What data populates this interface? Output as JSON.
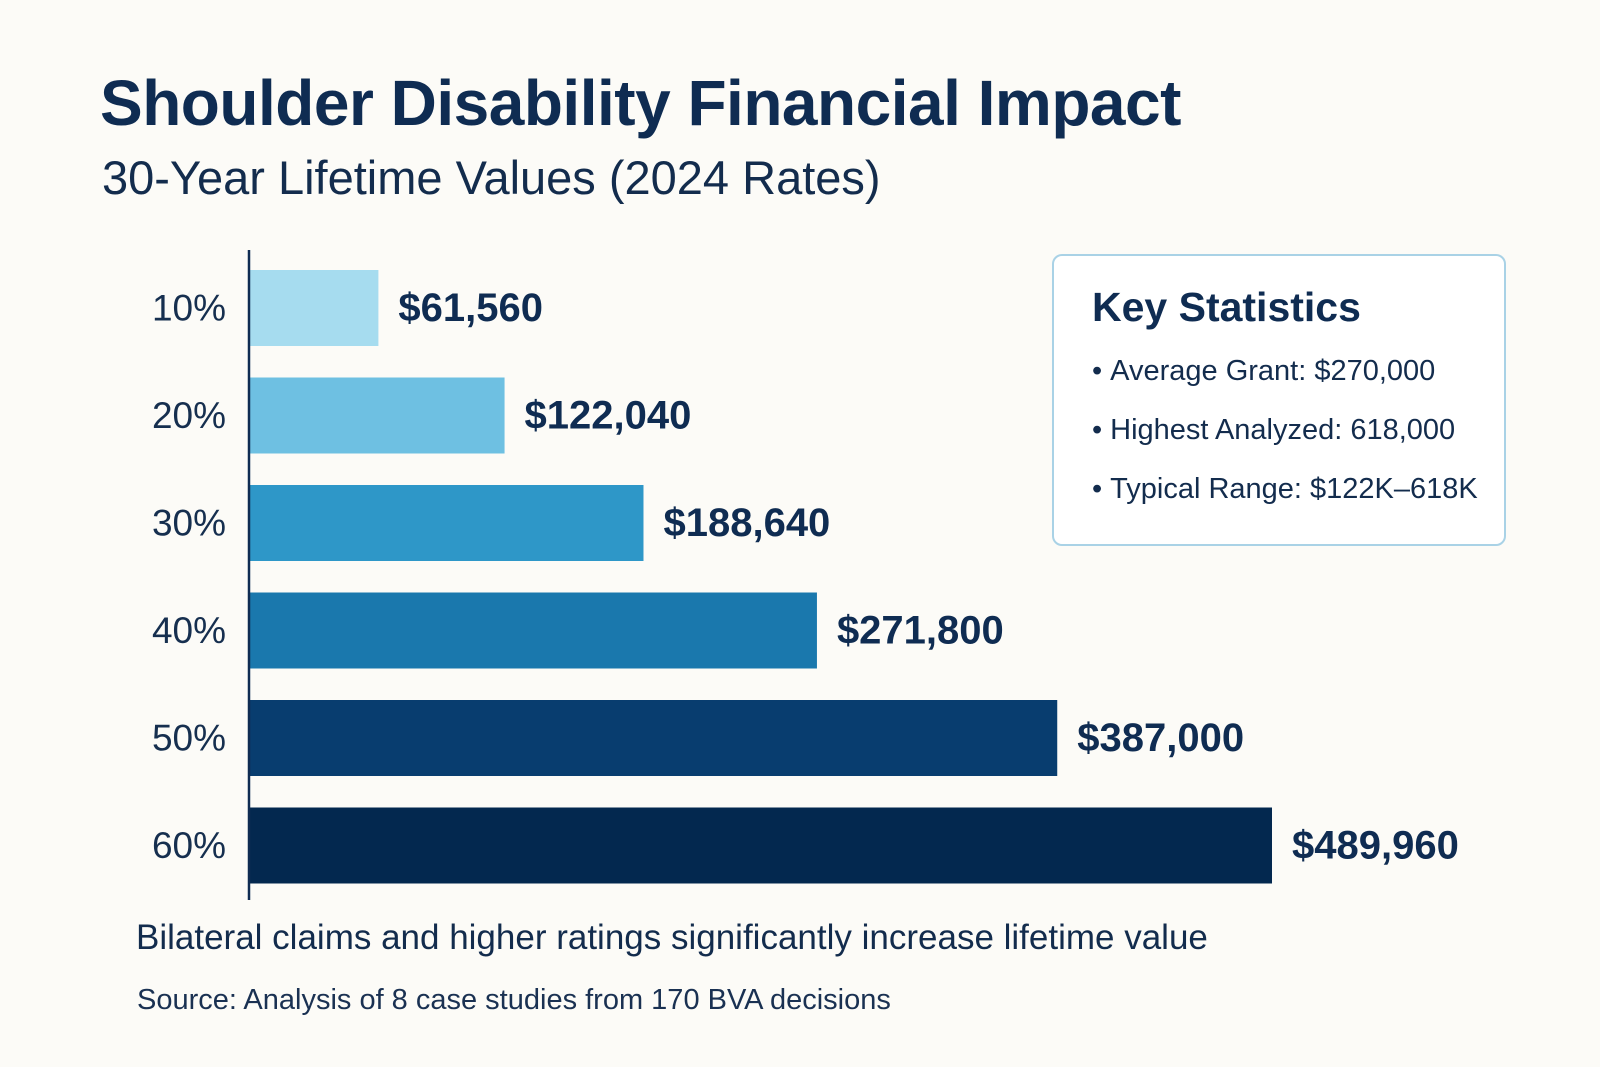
{
  "chart_data": {
    "type": "bar",
    "orientation": "horizontal",
    "title": "Shoulder Disability Financial Impact",
    "subtitle": "30-Year Lifetime Values (2024 Rates)",
    "categories": [
      "10%",
      "20%",
      "30%",
      "40%",
      "50%",
      "60%"
    ],
    "values": [
      61560,
      122040,
      188640,
      271800,
      387000,
      489960
    ],
    "value_labels": [
      "$61,560",
      "$122,040",
      "$188,640",
      "$271,800",
      "$387,000",
      "$489,960"
    ],
    "bar_colors": [
      "#a6dcef",
      "#6ec0e2",
      "#2e97c8",
      "#1a78ad",
      "#083d6f",
      "#03284f"
    ],
    "xlim": [
      0,
      489960
    ],
    "xlabel": "",
    "ylabel": "",
    "grid": false,
    "legend": "none"
  },
  "key_statistics": {
    "title": "Key Statistics",
    "items": [
      "Average Grant: $270,000",
      "Highest Analyzed: 618,000",
      "Typical Range: $122K–618K"
    ]
  },
  "footer": {
    "note": "Bilateral claims and higher ratings significantly increase lifetime value",
    "source": "Source: Analysis of 8 case studies from 170 BVA decisions"
  },
  "colors": {
    "background": "#fcfbf7",
    "text": "#0f2c52",
    "axis": "#0f2c52",
    "box_border": "#a9d2e6"
  }
}
